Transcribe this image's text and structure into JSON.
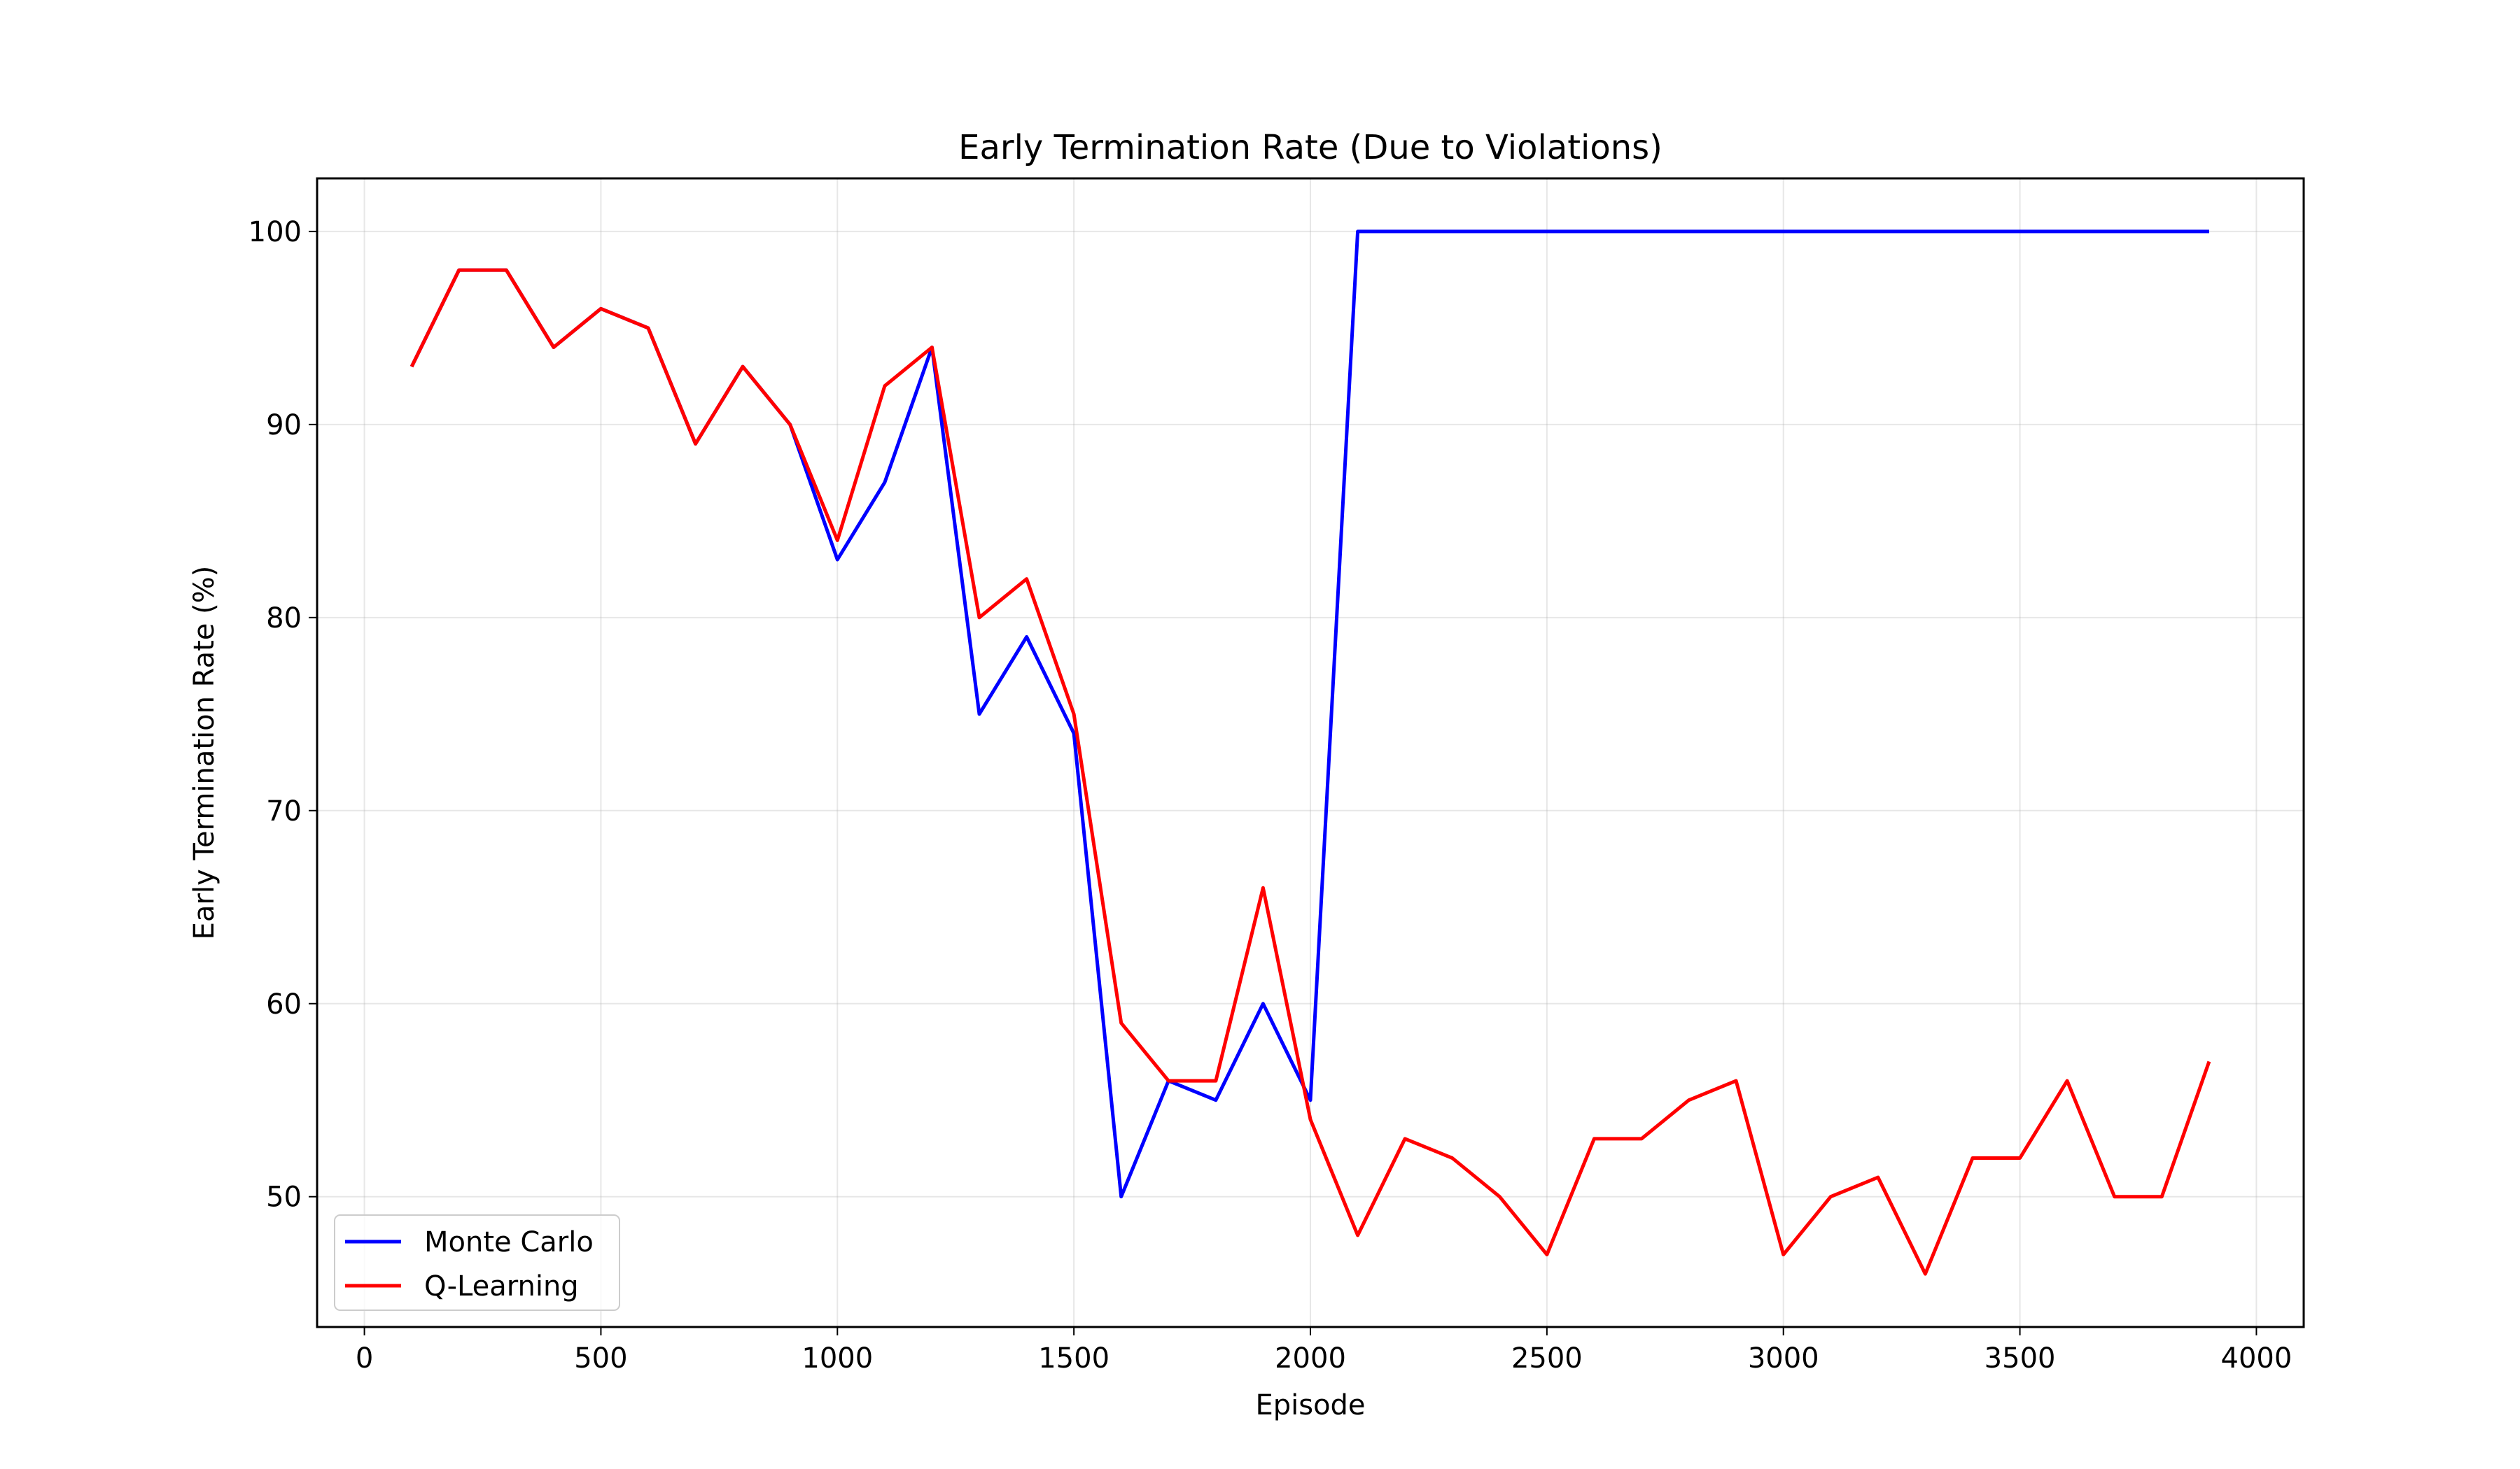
{
  "chart_data": {
    "type": "line",
    "title": "Early Termination Rate (Due to Violations)",
    "xlabel": "Episode",
    "ylabel": "Early Termination Rate (%)",
    "xlim": [
      -100,
      4100
    ],
    "ylim": [
      43.25,
      102.75
    ],
    "xticks": [
      0,
      500,
      1000,
      1500,
      2000,
      2500,
      3000,
      3500,
      4000
    ],
    "yticks": [
      50,
      60,
      70,
      80,
      90,
      100
    ],
    "grid": true,
    "legend": "bottom-left",
    "series": [
      {
        "name": "Monte Carlo",
        "color": "#0000ff",
        "x": [
          100,
          200,
          300,
          400,
          500,
          600,
          700,
          800,
          900,
          1000,
          1100,
          1200,
          1300,
          1400,
          1500,
          1600,
          1700,
          1800,
          1900,
          2000,
          2100,
          2200,
          2300,
          2400,
          2500,
          2600,
          2700,
          2800,
          2900,
          3000,
          3100,
          3200,
          3300,
          3400,
          3500,
          3600,
          3700,
          3800,
          3900
        ],
        "values": [
          93,
          98,
          98,
          94,
          96,
          95,
          89,
          93,
          90,
          83,
          87,
          94,
          75,
          79,
          74,
          50,
          56,
          55,
          60,
          55,
          100,
          100,
          100,
          100,
          100,
          100,
          100,
          100,
          100,
          100,
          100,
          100,
          100,
          100,
          100,
          100,
          100,
          100,
          100
        ]
      },
      {
        "name": "Q-Learning",
        "color": "#ff0000",
        "x": [
          100,
          200,
          300,
          400,
          500,
          600,
          700,
          800,
          900,
          1000,
          1100,
          1200,
          1300,
          1400,
          1500,
          1600,
          1700,
          1800,
          1900,
          2000,
          2100,
          2200,
          2300,
          2400,
          2500,
          2600,
          2700,
          2800,
          2900,
          3000,
          3100,
          3200,
          3300,
          3400,
          3500,
          3600,
          3700,
          3800,
          3900
        ],
        "values": [
          93,
          98,
          98,
          94,
          96,
          95,
          89,
          93,
          90,
          84,
          92,
          94,
          80,
          82,
          75,
          59,
          56,
          56,
          66,
          54,
          48,
          53,
          52,
          50,
          47,
          53,
          53,
          55,
          56,
          47,
          50,
          51,
          46,
          52,
          52,
          56,
          50,
          50,
          57
        ]
      }
    ]
  }
}
